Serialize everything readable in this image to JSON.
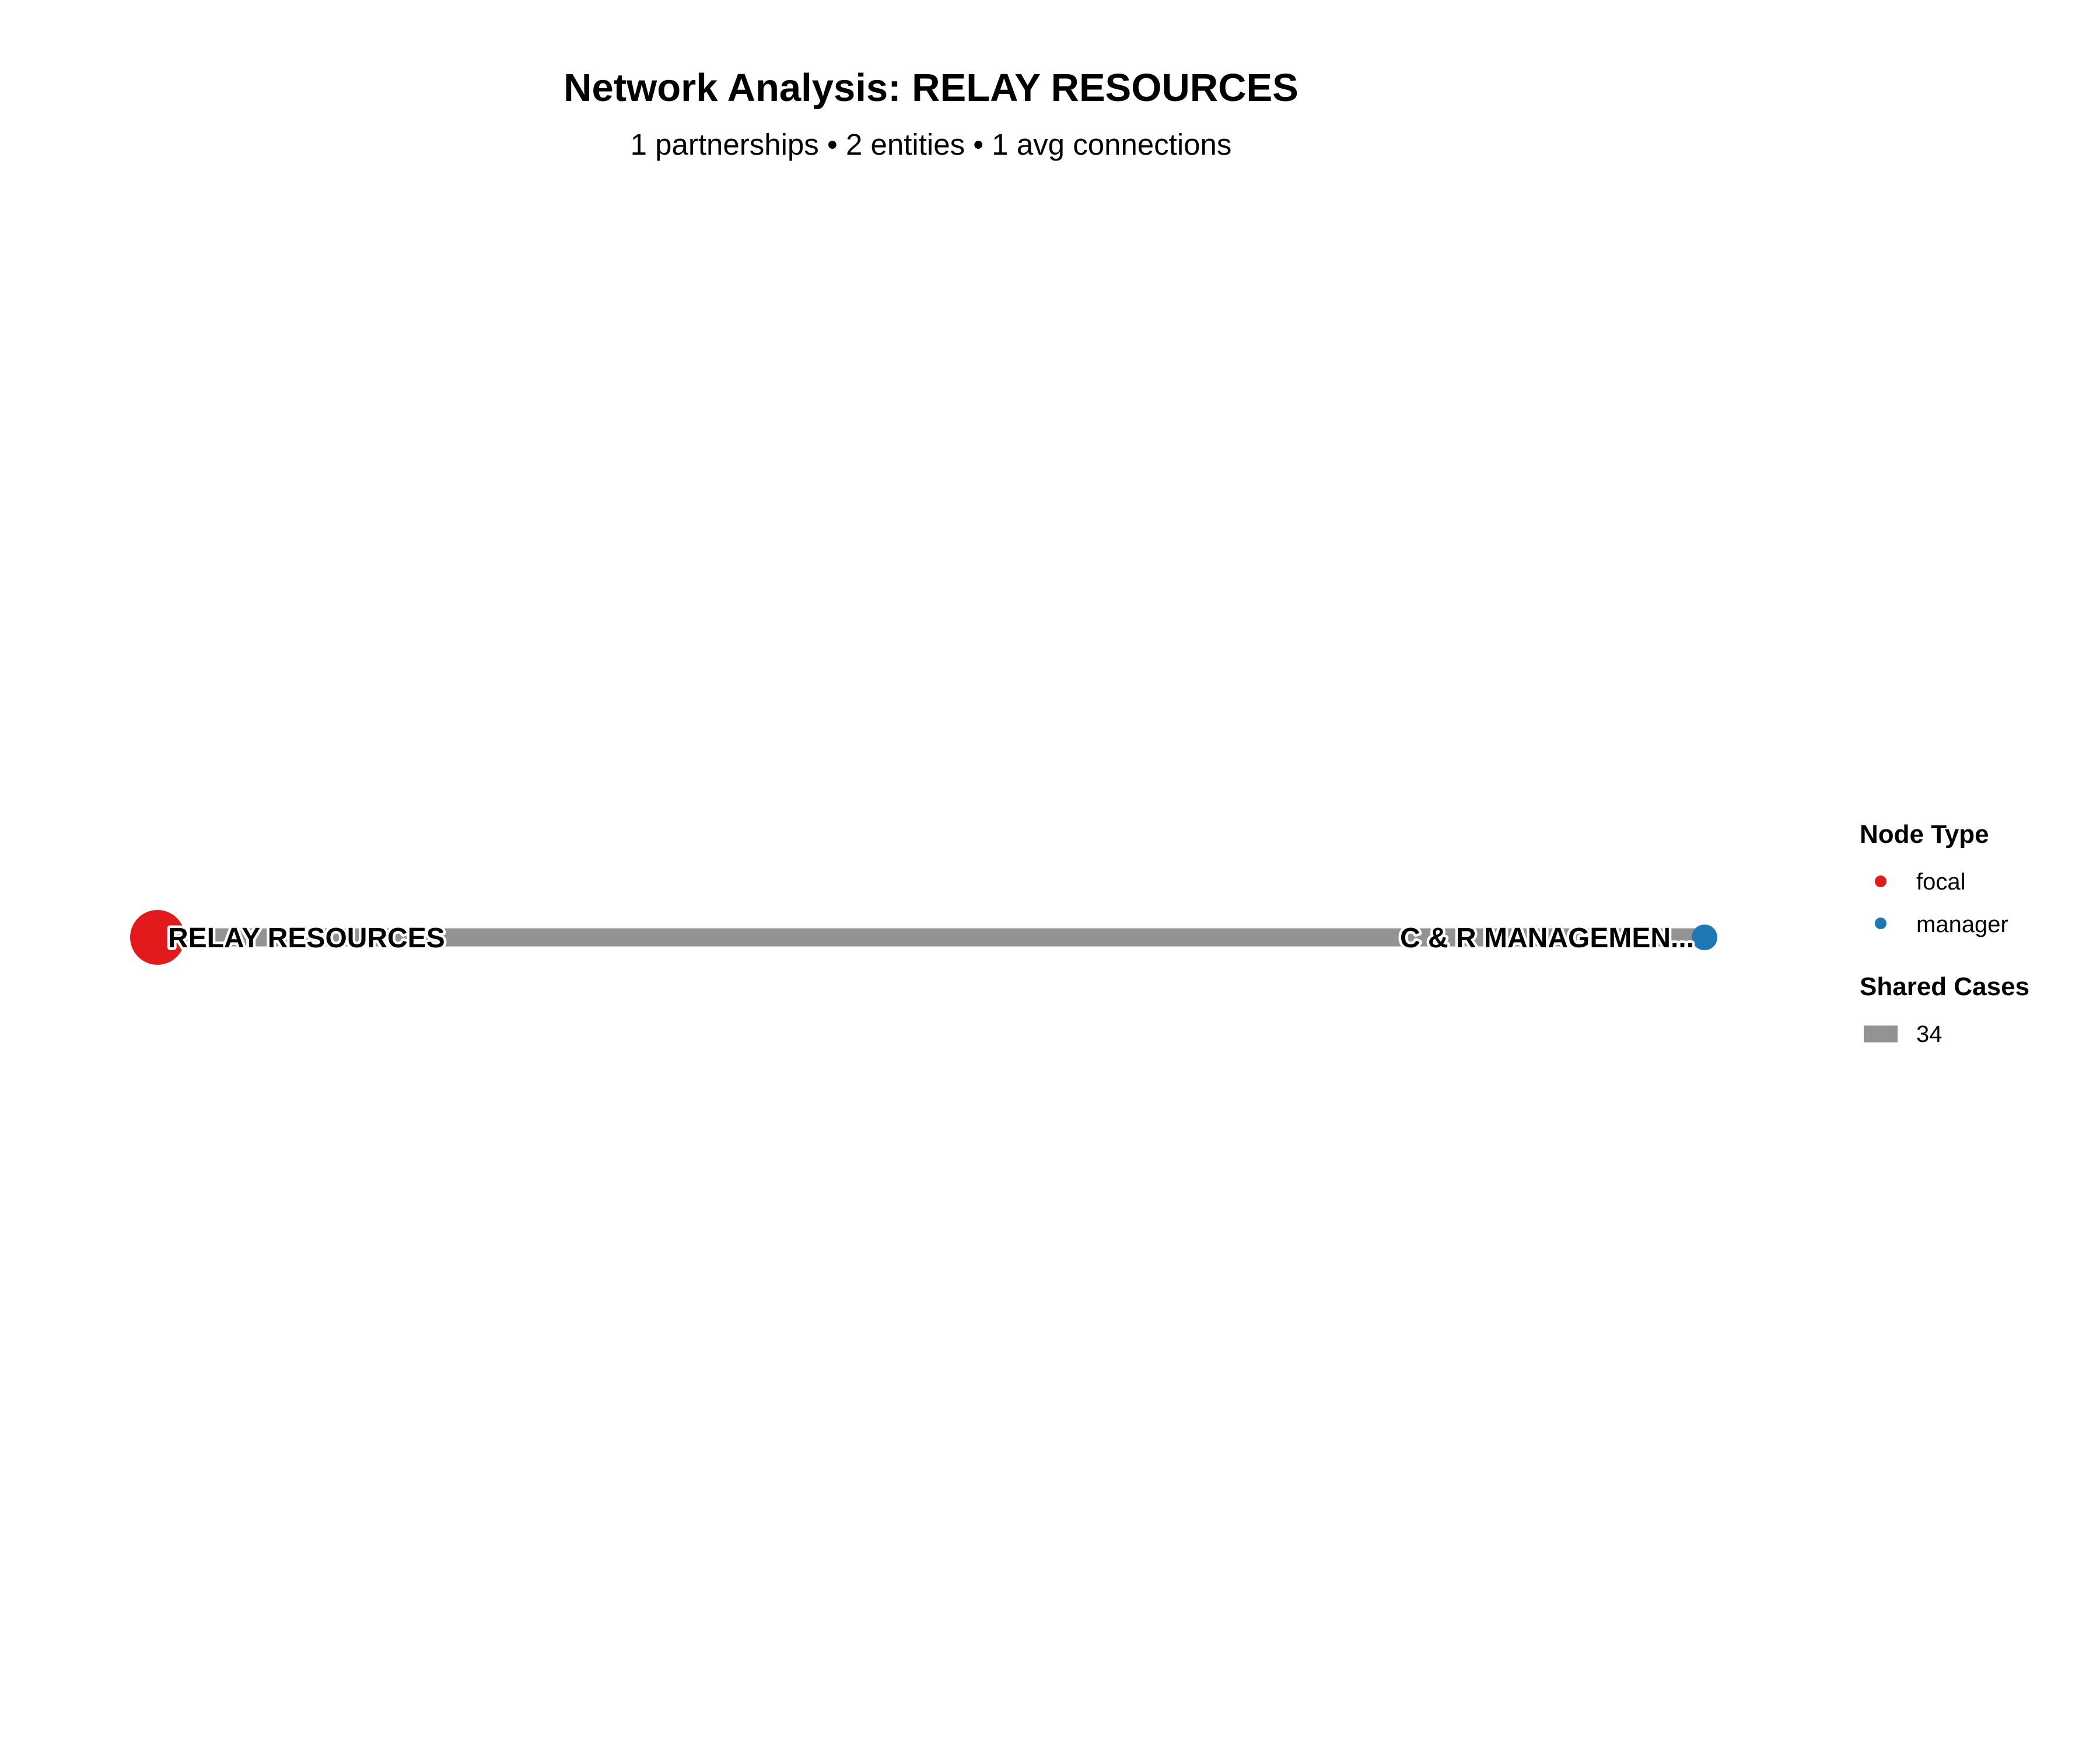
{
  "header": {
    "title": "Network Analysis: RELAY RESOURCES",
    "subtitle": "1 partnerships • 2 entities • 1 avg connections"
  },
  "network": {
    "nodes": [
      {
        "id": "relay",
        "label": "RELAY RESOURCES",
        "type": "focal",
        "color": "#e31a1c"
      },
      {
        "id": "cr",
        "label": "C & R MANAGEMEN...",
        "type": "manager",
        "color": "#1f78b4"
      }
    ],
    "edges": [
      {
        "source": "relay",
        "target": "cr",
        "shared_cases": 34,
        "color": "#939393"
      }
    ]
  },
  "legend": {
    "node_type": {
      "title": "Node Type",
      "items": [
        {
          "label": "focal",
          "color": "#e31a1c"
        },
        {
          "label": "manager",
          "color": "#1f78b4"
        }
      ]
    },
    "shared_cases": {
      "title": "Shared Cases",
      "items": [
        {
          "label": "34",
          "color": "#939393"
        }
      ]
    }
  }
}
